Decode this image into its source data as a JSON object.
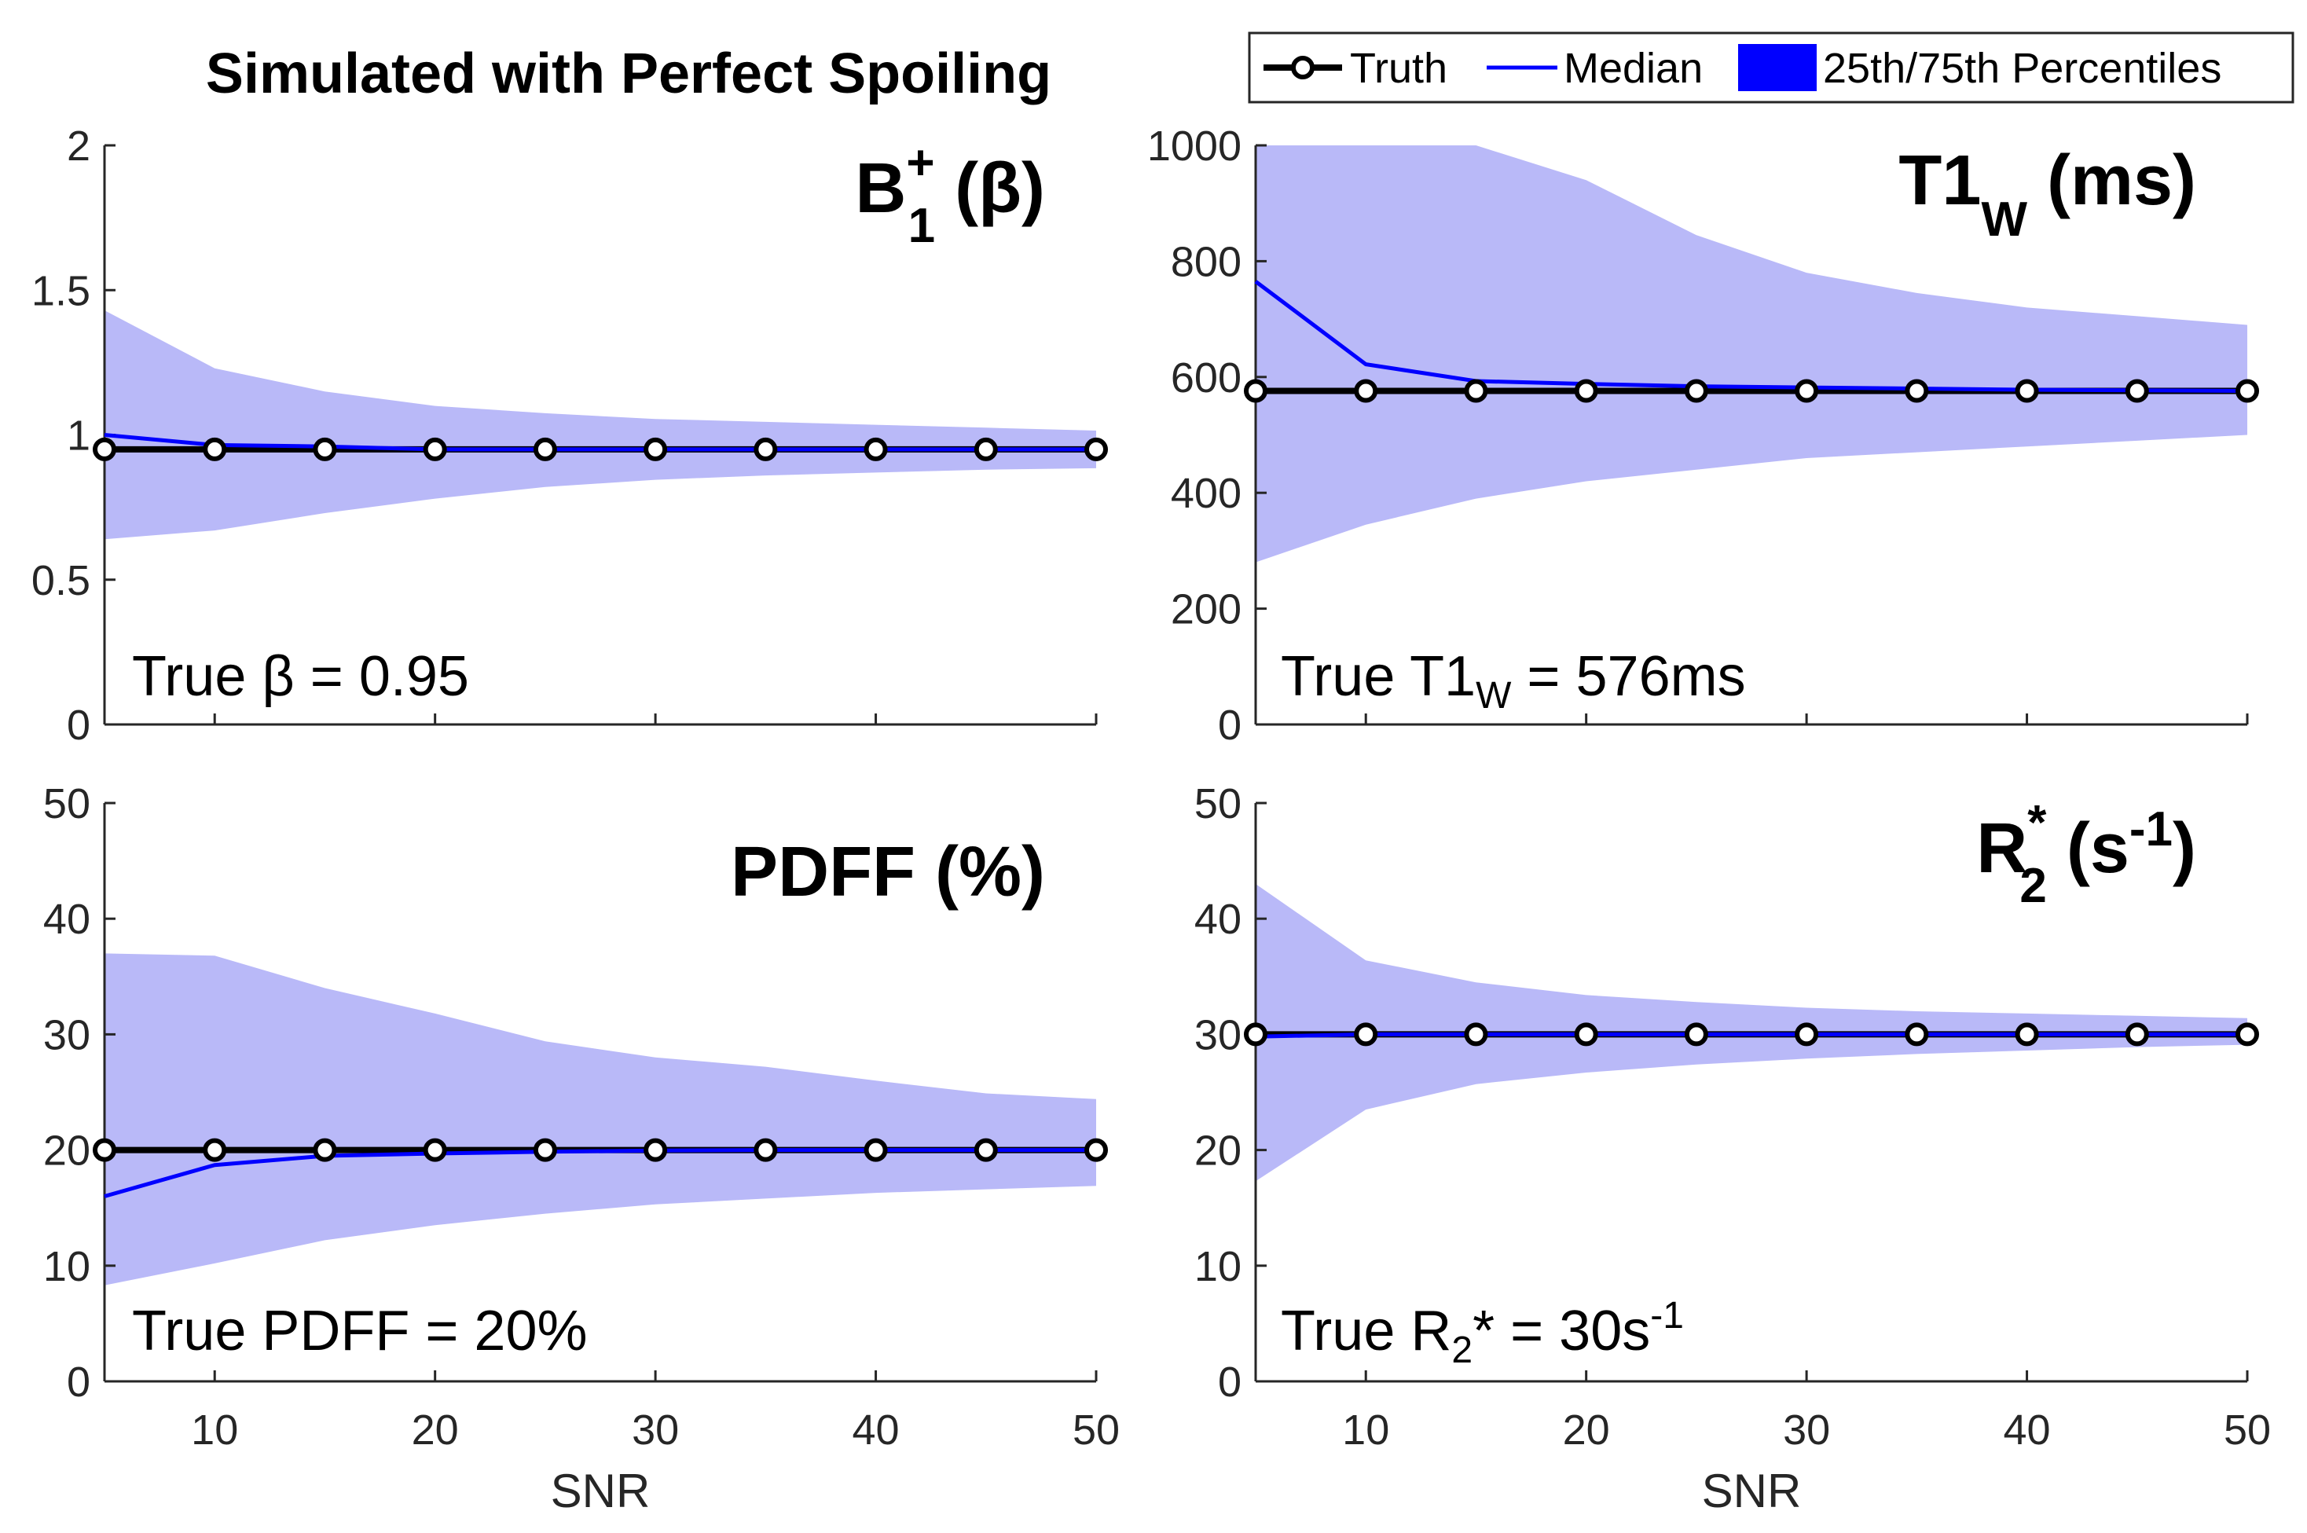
{
  "figure_title": "Simulated with Perfect Spoiling",
  "legend": {
    "truth_label": "Truth",
    "median_label": "Median",
    "percentile_label": "25th/75th Percentiles"
  },
  "colors": {
    "truth": "#000000",
    "median": "#0000ff",
    "band": "#b9b9f8",
    "axis": "#262626"
  },
  "chart_data": [
    {
      "type": "line",
      "id": "b1",
      "title": {
        "main": "B",
        "sub": "1",
        "sup": "+",
        "rest": " (β)"
      },
      "annotation": {
        "pre": "True β = 0.95",
        "sub": "",
        "sup": "",
        "post": ""
      },
      "xlabel": "",
      "ylabel": "",
      "xlim": [
        5,
        50
      ],
      "ylim": [
        0,
        2
      ],
      "xticks": [
        10,
        20,
        30,
        40,
        50
      ],
      "yticks": [
        0,
        0.5,
        1,
        1.5,
        2
      ],
      "ytick_labels": [
        "0",
        "0.5",
        "1",
        "1.5",
        "2"
      ],
      "show_xtick_labels": false,
      "x": [
        5,
        10,
        15,
        20,
        25,
        30,
        35,
        40,
        45,
        50
      ],
      "series": [
        {
          "name": "Truth",
          "values": [
            0.95,
            0.95,
            0.95,
            0.95,
            0.95,
            0.95,
            0.95,
            0.95,
            0.95,
            0.95
          ]
        },
        {
          "name": "Median",
          "values": [
            1.0,
            0.965,
            0.96,
            0.95,
            0.95,
            0.95,
            0.95,
            0.95,
            0.95,
            0.95
          ]
        },
        {
          "name": "25th Percentile",
          "values": [
            0.64,
            0.67,
            0.73,
            0.78,
            0.82,
            0.845,
            0.86,
            0.87,
            0.88,
            0.885
          ]
        },
        {
          "name": "75th Percentile",
          "values": [
            1.43,
            1.23,
            1.15,
            1.1,
            1.075,
            1.055,
            1.045,
            1.035,
            1.025,
            1.015
          ]
        }
      ]
    },
    {
      "type": "line",
      "id": "t1",
      "title": {
        "main": "T1",
        "sub": "W",
        "sup": "",
        "rest": " (ms)"
      },
      "annotation": {
        "pre": "True T1",
        "sub": "W",
        "sup": "",
        "post": " = 576ms"
      },
      "xlabel": "",
      "ylabel": "",
      "xlim": [
        5,
        50
      ],
      "ylim": [
        0,
        1000
      ],
      "xticks": [
        10,
        20,
        30,
        40,
        50
      ],
      "yticks": [
        0,
        200,
        400,
        600,
        800,
        1000
      ],
      "ytick_labels": [
        "0",
        "200",
        "400",
        "600",
        "800",
        "1000"
      ],
      "show_xtick_labels": false,
      "x": [
        5,
        10,
        15,
        20,
        25,
        30,
        35,
        40,
        45,
        50
      ],
      "series": [
        {
          "name": "Truth",
          "values": [
            576,
            576,
            576,
            576,
            576,
            576,
            576,
            576,
            576,
            576
          ]
        },
        {
          "name": "Median",
          "values": [
            765,
            622,
            593,
            588,
            584,
            582,
            580,
            578,
            577,
            576
          ]
        },
        {
          "name": "25th Percentile",
          "values": [
            280,
            345,
            390,
            420,
            440,
            460,
            470,
            480,
            490,
            500
          ]
        },
        {
          "name": "75th Percentile",
          "values": [
            1000,
            1000,
            1000,
            940,
            845,
            780,
            745,
            720,
            705,
            690
          ]
        }
      ]
    },
    {
      "type": "line",
      "id": "pdff",
      "title": {
        "main": "PDFF (%)",
        "sub": "",
        "sup": "",
        "rest": ""
      },
      "annotation": {
        "pre": "True PDFF = 20%",
        "sub": "",
        "sup": "",
        "post": ""
      },
      "xlabel": "SNR",
      "ylabel": "",
      "xlim": [
        5,
        50
      ],
      "ylim": [
        0,
        50
      ],
      "xticks": [
        10,
        20,
        30,
        40,
        50
      ],
      "yticks": [
        0,
        10,
        20,
        30,
        40,
        50
      ],
      "ytick_labels": [
        "0",
        "10",
        "20",
        "30",
        "40",
        "50"
      ],
      "show_xtick_labels": true,
      "x": [
        5,
        10,
        15,
        20,
        25,
        30,
        35,
        40,
        45,
        50
      ],
      "series": [
        {
          "name": "Truth",
          "values": [
            20,
            20,
            20,
            20,
            20,
            20,
            20,
            20,
            20,
            20
          ]
        },
        {
          "name": "Median",
          "values": [
            16,
            18.7,
            19.5,
            19.7,
            19.85,
            19.95,
            20,
            20,
            20,
            20
          ]
        },
        {
          "name": "25th Percentile",
          "values": [
            8.3,
            10.2,
            12.2,
            13.5,
            14.5,
            15.3,
            15.8,
            16.3,
            16.6,
            16.9
          ]
        },
        {
          "name": "75th Percentile",
          "values": [
            37,
            36.8,
            34,
            31.8,
            29.4,
            28,
            27.2,
            26,
            24.9,
            24.4
          ]
        }
      ]
    },
    {
      "type": "line",
      "id": "r2",
      "title": {
        "main": "R",
        "sub": "2",
        "sup": "*",
        "rest": " (s",
        "rest_sup": "-1",
        "rest_end": ")"
      },
      "annotation": {
        "pre": "True R",
        "sub": "2",
        "sup": "",
        "post": "* = 30s",
        "post_sup": "-1"
      },
      "xlabel": "SNR",
      "ylabel": "",
      "xlim": [
        5,
        50
      ],
      "ylim": [
        0,
        50
      ],
      "xticks": [
        10,
        20,
        30,
        40,
        50
      ],
      "yticks": [
        0,
        10,
        20,
        30,
        40,
        50
      ],
      "ytick_labels": [
        "0",
        "10",
        "20",
        "30",
        "40",
        "50"
      ],
      "show_xtick_labels": true,
      "x": [
        5,
        10,
        15,
        20,
        25,
        30,
        35,
        40,
        45,
        50
      ],
      "series": [
        {
          "name": "Truth",
          "values": [
            30,
            30,
            30,
            30,
            30,
            30,
            30,
            30,
            30,
            30
          ]
        },
        {
          "name": "Median",
          "values": [
            29.8,
            30,
            30,
            30,
            30,
            30,
            30,
            30,
            30,
            30
          ]
        },
        {
          "name": "25th Percentile",
          "values": [
            17.3,
            23.5,
            25.7,
            26.7,
            27.4,
            27.9,
            28.3,
            28.6,
            28.9,
            29.1
          ]
        },
        {
          "name": "75th Percentile",
          "values": [
            43,
            36.4,
            34.5,
            33.4,
            32.8,
            32.3,
            32,
            31.8,
            31.6,
            31.4
          ]
        }
      ]
    }
  ]
}
